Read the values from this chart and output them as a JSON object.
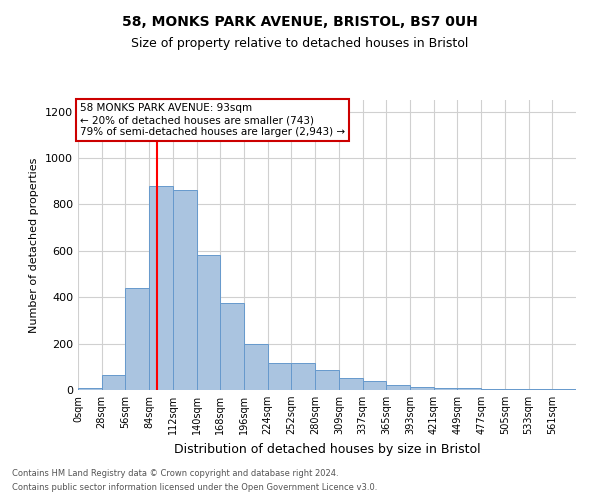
{
  "title1": "58, MONKS PARK AVENUE, BRISTOL, BS7 0UH",
  "title2": "Size of property relative to detached houses in Bristol",
  "xlabel": "Distribution of detached houses by size in Bristol",
  "ylabel": "Number of detached properties",
  "bar_labels": [
    "0sqm",
    "28sqm",
    "56sqm",
    "84sqm",
    "112sqm",
    "140sqm",
    "168sqm",
    "196sqm",
    "224sqm",
    "252sqm",
    "280sqm",
    "309sqm",
    "337sqm",
    "365sqm",
    "393sqm",
    "421sqm",
    "449sqm",
    "477sqm",
    "505sqm",
    "533sqm",
    "561sqm"
  ],
  "bar_values": [
    10,
    65,
    440,
    880,
    860,
    580,
    375,
    200,
    115,
    115,
    85,
    50,
    40,
    20,
    15,
    10,
    8,
    5,
    5,
    5,
    5
  ],
  "bar_color": "#aac4e0",
  "bar_edgecolor": "#6699cc",
  "grid_color": "#d0d0d0",
  "background_color": "#ffffff",
  "red_line_x": 93,
  "bin_width": 28,
  "annotation_text": "58 MONKS PARK AVENUE: 93sqm\n← 20% of detached houses are smaller (743)\n79% of semi-detached houses are larger (2,943) →",
  "annotation_box_color": "#ffffff",
  "annotation_box_edgecolor": "#cc0000",
  "ylim": [
    0,
    1250
  ],
  "yticks": [
    0,
    200,
    400,
    600,
    800,
    1000,
    1200
  ],
  "footer1": "Contains HM Land Registry data © Crown copyright and database right 2024.",
  "footer2": "Contains public sector information licensed under the Open Government Licence v3.0."
}
